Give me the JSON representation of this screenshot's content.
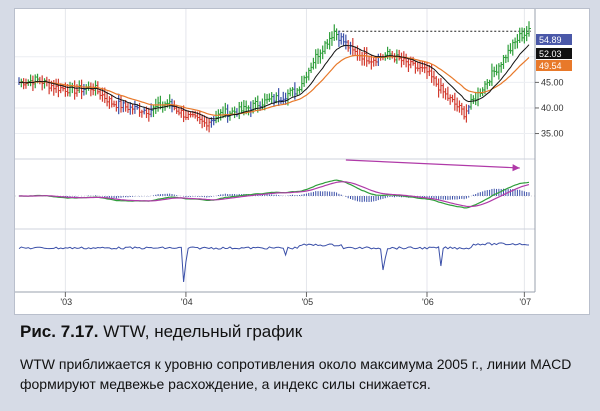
{
  "caption": {
    "figure_label": "Рис. 7.17.",
    "title": "WTW, недельный график"
  },
  "description": "WTW приближается к уровню сопротивления около максимума 2005 г., линии MACD формируют медвежье расхождение, а индекс силы снижается.",
  "colors": {
    "up_bar": "#2e9e3a",
    "down_bar": "#d23a2e",
    "neutral_bar": "#3a4fa8",
    "ema_fast": "#111111",
    "ema_slow": "#e8792a",
    "macd_line": "#2e9e3a",
    "signal_line": "#b03aa8",
    "histogram": "#3a4fa8",
    "force_index": "#3a4fa8",
    "arrow": "#b03aa8",
    "badge_price": "#4a58a8",
    "badge_fast": "#111111",
    "badge_slow": "#e8792a"
  },
  "chart_data": {
    "type": "line",
    "x_tick_labels": [
      "'03",
      "'04",
      "'05",
      "'06",
      "'07"
    ],
    "y_tick_labels": [
      "35.00",
      "40.00",
      "45.00"
    ],
    "ylim": [
      31,
      57
    ],
    "price_badges": [
      "54.89",
      "52.03",
      "49.54"
    ],
    "series": [
      {
        "name": "",
        "weeks": [
          0,
          8,
          16,
          24,
          32,
          40,
          48,
          56,
          64,
          72,
          80,
          88,
          96,
          104,
          112,
          120,
          128,
          136,
          144,
          152,
          160,
          168,
          176,
          184,
          192,
          200,
          208,
          216,
          220
        ],
        "values": [
          45.0,
          45.5,
          44.0,
          43.5,
          44.0,
          41.0,
          40.0,
          39.5,
          41.0,
          38.5,
          37.0,
          39.0,
          39.5,
          41.0,
          42.0,
          43.5,
          50.0,
          55.0,
          51.0,
          49.5,
          50.5,
          48.5,
          47.0,
          42.5,
          39.0,
          44.0,
          49.0,
          54.0,
          54.9
        ]
      }
    ],
    "resistance_level": 55.0,
    "annotations": [
      "divergence arrow over MACD"
    ]
  }
}
